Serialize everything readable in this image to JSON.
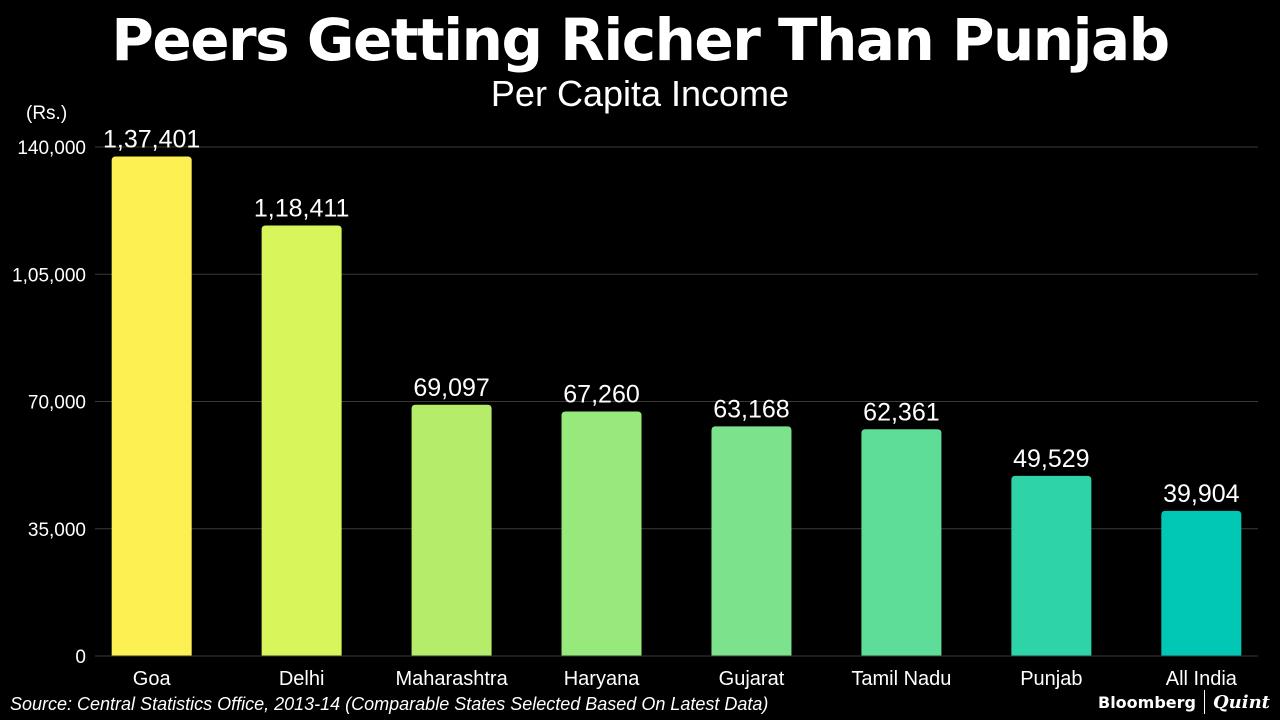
{
  "title": "Peers Getting Richer Than Punjab",
  "subtitle": "Per Capita Income",
  "unit_label": "(Rs.)",
  "source": "Source: Central Statistics Office, 2013-14 (Comparable States Selected Based On Latest Data)",
  "brand": {
    "primary": "Bloomberg",
    "secondary": "Quint"
  },
  "colors": {
    "background": "#000000",
    "gridline": "#3a3a3a",
    "text": "#ffffff",
    "bars": [
      "#fdf052",
      "#d9f55c",
      "#b5ec6a",
      "#97e97b",
      "#7de28c",
      "#5ddd97",
      "#2fd3a8",
      "#00c8b4"
    ]
  },
  "chart_data": {
    "type": "bar",
    "title": "Peers Getting Richer Than Punjab",
    "subtitle": "Per Capita Income",
    "ylabel": "(Rs.)",
    "xlabel": "",
    "categories": [
      "Goa",
      "Delhi",
      "Maharashtra",
      "Haryana",
      "Gujarat",
      "Tamil Nadu",
      "Punjab",
      "All India"
    ],
    "values": [
      137401,
      118411,
      69097,
      67260,
      63168,
      62361,
      49529,
      39904
    ],
    "value_labels": [
      "1,37,401",
      "1,18,411",
      "69,097",
      "67,260",
      "63,168",
      "62,361",
      "49,529",
      "39,904"
    ],
    "ylim": [
      0,
      140000
    ],
    "yticks": [
      0,
      35000,
      70000,
      105000,
      140000
    ],
    "ytick_labels": [
      "0",
      "35,000",
      "70,000",
      "1,05,000",
      "140,000"
    ],
    "grid": true,
    "legend": "none"
  }
}
